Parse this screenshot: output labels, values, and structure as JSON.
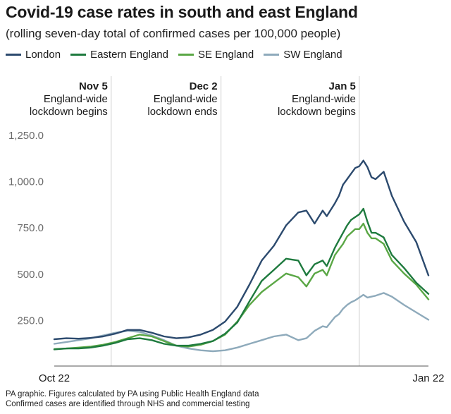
{
  "title": "Covid-19 case rates in south and east England",
  "subtitle": "(rolling seven-day total of confirmed cases per 100,000 people)",
  "footer": {
    "line1": "PA graphic. Figures calculated by PA using Public Health England data",
    "line2": "Confirmed cases are identified through NHS and commercial testing"
  },
  "chart_data": {
    "type": "line",
    "x_start_label": "Oct 22",
    "x_end_label": "Jan 22",
    "x_range": [
      "2020-10-22",
      "2021-01-22"
    ],
    "y_range": [
      0,
      1250
    ],
    "y_ticks": [
      "250.0",
      "500.0",
      "750.0",
      "1,000.0",
      "1,250.0"
    ],
    "y_tick_values": [
      250,
      500,
      750,
      1000,
      1250
    ],
    "grid": false,
    "legend_position": "top-left",
    "annotations": [
      {
        "x": "2020-11-05",
        "date": "Nov 5",
        "line1": "England-wide",
        "line2": "lockdown begins"
      },
      {
        "x": "2020-12-02",
        "date": "Dec 2",
        "line1": "England-wide",
        "line2": "lockdown ends"
      },
      {
        "x": "2021-01-05",
        "date": "Jan 5",
        "line1": "England-wide",
        "line2": "lockdown begins"
      }
    ],
    "dates": [
      "2020-10-22",
      "2020-10-25",
      "2020-10-28",
      "2020-10-31",
      "2020-11-03",
      "2020-11-06",
      "2020-11-09",
      "2020-11-12",
      "2020-11-15",
      "2020-11-18",
      "2020-11-21",
      "2020-11-24",
      "2020-11-27",
      "2020-11-30",
      "2020-12-03",
      "2020-12-06",
      "2020-12-09",
      "2020-12-12",
      "2020-12-15",
      "2020-12-18",
      "2020-12-21",
      "2020-12-23",
      "2020-12-25",
      "2020-12-27",
      "2020-12-28",
      "2020-12-30",
      "2020-12-31",
      "2021-01-01",
      "2021-01-02",
      "2021-01-03",
      "2021-01-04",
      "2021-01-05",
      "2021-01-06",
      "2021-01-07",
      "2021-01-08",
      "2021-01-09",
      "2021-01-11",
      "2021-01-13",
      "2021-01-16",
      "2021-01-19",
      "2021-01-22"
    ],
    "series": [
      {
        "name": "London",
        "color": "#2c4a6e",
        "values": [
          145,
          150,
          148,
          152,
          160,
          175,
          195,
          195,
          180,
          160,
          150,
          155,
          170,
          195,
          240,
          320,
          440,
          570,
          650,
          760,
          830,
          840,
          770,
          840,
          810,
          880,
          920,
          980,
          1010,
          1040,
          1070,
          1080,
          1110,
          1075,
          1020,
          1010,
          1050,
          920,
          780,
          670,
          490
        ]
      },
      {
        "name": "Eastern England",
        "color": "#1e7a3e",
        "values": [
          90,
          95,
          95,
          100,
          110,
          125,
          145,
          150,
          140,
          120,
          110,
          110,
          120,
          135,
          175,
          235,
          350,
          460,
          520,
          580,
          570,
          490,
          550,
          570,
          540,
          640,
          680,
          720,
          760,
          790,
          805,
          820,
          850,
          780,
          720,
          720,
          695,
          600,
          530,
          450,
          390
        ]
      },
      {
        "name": "SE England",
        "color": "#5aa745",
        "values": [
          92,
          95,
          100,
          105,
          115,
          130,
          150,
          170,
          160,
          135,
          110,
          105,
          115,
          135,
          170,
          240,
          330,
          400,
          450,
          500,
          480,
          430,
          500,
          520,
          490,
          600,
          630,
          660,
          700,
          720,
          740,
          740,
          770,
          720,
          690,
          690,
          660,
          570,
          500,
          440,
          360
        ]
      },
      {
        "name": "SW England",
        "color": "#8eaabb",
        "values": [
          120,
          130,
          140,
          150,
          165,
          180,
          190,
          185,
          165,
          140,
          110,
          95,
          85,
          80,
          85,
          100,
          120,
          140,
          160,
          170,
          140,
          150,
          190,
          215,
          210,
          265,
          280,
          310,
          330,
          345,
          355,
          370,
          385,
          370,
          375,
          380,
          395,
          375,
          330,
          290,
          250
        ]
      }
    ]
  }
}
